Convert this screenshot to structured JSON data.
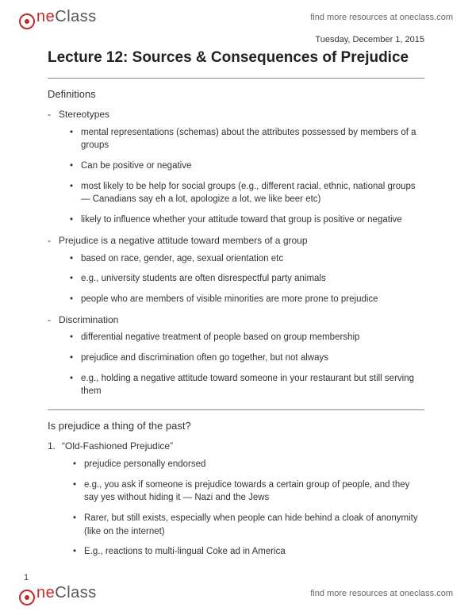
{
  "brand": {
    "part1": "ne",
    "part2": "Class",
    "tagline": "find more resources at oneclass.com"
  },
  "date": "Tuesday, December 1, 2015",
  "title": "Lecture 12: Sources & Consequences of Prejudice",
  "section1": {
    "heading": "Definitions",
    "items": [
      {
        "label": "Stereotypes",
        "sub": [
          "mental representations (schemas) about the attributes possessed by members of a groups",
          "Can be positive or negative",
          "most likely to be help for social groups (e.g., different racial, ethnic, national groups — Canadians say eh a lot, apologize a lot, we like beer etc)",
          "likely to influence whether your attitude toward that group is positive or negative"
        ]
      },
      {
        "label": "Prejudice is a negative attitude toward members of a group",
        "sub": [
          "based on race, gender, age, sexual orientation etc",
          "e.g., university students are often disrespectful party animals",
          "people who are members of visible minorities are more prone to prejudice"
        ]
      },
      {
        "label": "Discrimination",
        "sub": [
          "differential negative treatment of people based on group membership",
          "prejudice and discrimination often go together, but not always",
          "e.g., holding a negative attitude toward someone in your restaurant but still serving them"
        ]
      }
    ]
  },
  "section2": {
    "heading": "Is prejudice a thing of the past?",
    "items": [
      {
        "num": "1.",
        "label": "“Old-Fashioned Prejudice”",
        "sub": [
          "prejudice personally endorsed",
          "e.g., you ask if someone is prejudice towards a certain group of people, and they say yes without hiding it — Nazi and the Jews",
          "Rarer, but still exists, especially when people can hide behind a cloak of anonymity (like on the internet)",
          "E.g., reactions to multi-lingual Coke ad in America"
        ]
      }
    ]
  },
  "pageNumber": "1"
}
